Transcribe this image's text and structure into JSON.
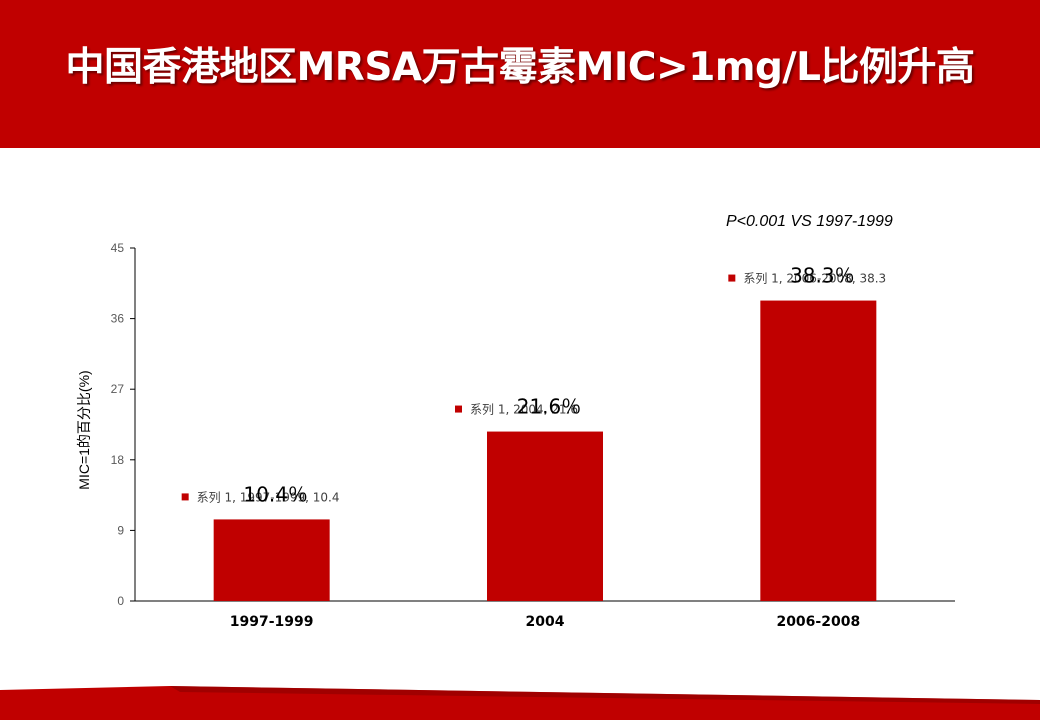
{
  "slide": {
    "title": "中国香港地区MRSA万古霉素MIC>1mg/L比例升高",
    "annotation": "P<0.001 VS 1997-1999"
  },
  "colors": {
    "brand_red": "#c00000",
    "bar_red": "#c00000",
    "axis": "#000000",
    "tick_text": "#595959",
    "label_text": "#404040"
  },
  "chart_data": {
    "type": "bar",
    "categories": [
      "1997-1999",
      "2004",
      "2006-2008"
    ],
    "values": [
      10.4,
      21.6,
      38.3
    ],
    "value_labels": [
      "10.4％",
      "21.6％",
      "38.3％"
    ],
    "point_labels": [
      "系列 1, 1997-1999, 10.4",
      "系列 1, 2004, 21.6",
      "系列 1, 2006-2008, 38.3"
    ],
    "ylabel": "MIC=1的百分比(%)",
    "xlabel": "",
    "ylim": [
      0,
      45
    ],
    "yticks": [
      0,
      9,
      18,
      27,
      36,
      45
    ],
    "grid": false
  }
}
